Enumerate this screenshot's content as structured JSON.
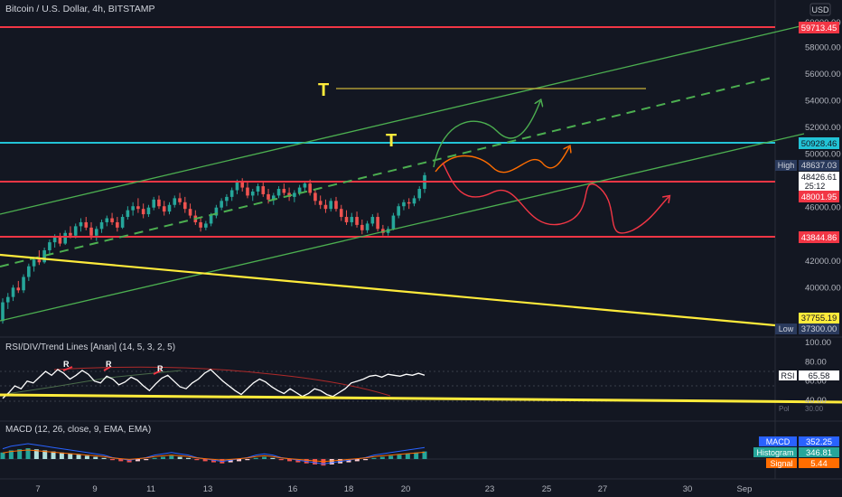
{
  "header": {
    "symbol_title": "Bitcoin / U.S. Dollar, 4h, BITSTAMP",
    "currency": "USD",
    "top_label": "60000.00"
  },
  "price_axis": {
    "ticks": [
      "58000.00",
      "56000.00",
      "54000.00",
      "52000.00",
      "50000.00",
      "46000.00",
      "42000.00",
      "40000.00"
    ],
    "tick_values": [
      58000,
      56000,
      54000,
      52000,
      50000,
      46000,
      42000,
      40000
    ],
    "ylim": [
      36500,
      60200
    ]
  },
  "price_labels": {
    "res_top": "59713.45",
    "cyan_level": "50928.46",
    "high_tag": "High",
    "high_value": "48637.03",
    "last_price": "48426.61",
    "countdown": "25:12",
    "level_48001": "48001.95",
    "level_43844": "43844.86",
    "support_37755": "37755.19",
    "low_tag": "Low",
    "low_value": "37300.00"
  },
  "levels": {
    "res_top": 59713.45,
    "cyan_level": 50928.46,
    "level_48001": 48001.95,
    "level_43844": 43844.86
  },
  "annotations": {
    "t1": "T",
    "t2": "T"
  },
  "rsi": {
    "title": "RSI/DIV/Trend Lines [Anan] (14, 5, 3, 2, 5)",
    "ticks": [
      "100.00",
      "80.00",
      "60.00",
      "40.00"
    ],
    "tick_values": [
      100,
      80,
      60,
      40
    ],
    "rsi_label": "RSI",
    "rsi_value": "65.58",
    "obscured_1": "Pol",
    "obscured_2": "30.00",
    "div_markers": [
      "R",
      "R",
      "R"
    ]
  },
  "macd": {
    "title": "MACD (12, 26, close, 9, EMA, EMA)",
    "macd_tag": "MACD",
    "macd_value": "352.25",
    "hist_tag": "Histogram",
    "hist_value": "346.81",
    "signal_tag": "Signal",
    "signal_value": "5.44"
  },
  "time_axis": {
    "labels": [
      "7",
      "9",
      "11",
      "13",
      "16",
      "18",
      "20",
      "23",
      "25",
      "27",
      "30",
      "Sep"
    ]
  },
  "colors": {
    "bg": "#131722",
    "up": "#26a69a",
    "down": "#ef5350",
    "red_line": "#f23645",
    "cyan_line": "#22c3d6",
    "green_line": "#4caf50",
    "yellow_line": "#ffeb3b",
    "orange_path": "#ff6d00",
    "text": "#b2b5be"
  },
  "chart_data": {
    "type": "candlestick",
    "title": "Bitcoin / U.S. Dollar, 4h, BITSTAMP",
    "ylim": [
      36500,
      60200
    ],
    "candles_ohlc": [
      [
        37500,
        39200,
        37300,
        38900
      ],
      [
        38900,
        39600,
        38400,
        39300
      ],
      [
        39300,
        40200,
        39000,
        40000
      ],
      [
        40000,
        40500,
        39600,
        39800
      ],
      [
        39800,
        41000,
        39600,
        40800
      ],
      [
        40800,
        41800,
        40500,
        41600
      ],
      [
        41600,
        42300,
        41200,
        42100
      ],
      [
        42100,
        42800,
        41700,
        41900
      ],
      [
        41900,
        43000,
        41800,
        42800
      ],
      [
        42800,
        43600,
        42500,
        43400
      ],
      [
        43400,
        44000,
        43000,
        43800
      ],
      [
        43800,
        44100,
        43100,
        43300
      ],
      [
        43300,
        44300,
        43200,
        44100
      ],
      [
        44100,
        44600,
        43700,
        43900
      ],
      [
        43900,
        44800,
        43700,
        44600
      ],
      [
        44600,
        45200,
        44200,
        44900
      ],
      [
        44900,
        45300,
        44300,
        44500
      ],
      [
        44500,
        44900,
        43600,
        43900
      ],
      [
        43900,
        44600,
        43500,
        44400
      ],
      [
        44400,
        45100,
        44100,
        44900
      ],
      [
        44900,
        45400,
        44600,
        45200
      ],
      [
        45200,
        45600,
        44700,
        44900
      ],
      [
        44900,
        45300,
        44200,
        44500
      ],
      [
        44500,
        45500,
        44400,
        45300
      ],
      [
        45300,
        46100,
        45100,
        45800
      ],
      [
        45800,
        46400,
        45400,
        46100
      ],
      [
        46100,
        46700,
        45600,
        45900
      ],
      [
        45900,
        46300,
        45200,
        45500
      ],
      [
        45500,
        46200,
        45300,
        46000
      ],
      [
        46000,
        46800,
        45800,
        46600
      ],
      [
        46600,
        46900,
        45900,
        46100
      ],
      [
        46100,
        46500,
        45400,
        45700
      ],
      [
        45700,
        46400,
        45500,
        46200
      ],
      [
        46200,
        46900,
        46000,
        46700
      ],
      [
        46700,
        47100,
        46200,
        46400
      ],
      [
        46400,
        46800,
        45600,
        45900
      ],
      [
        45900,
        46300,
        45200,
        45400
      ],
      [
        45400,
        45800,
        44700,
        44900
      ],
      [
        44900,
        45300,
        44200,
        44500
      ],
      [
        44500,
        45000,
        44300,
        44800
      ],
      [
        44800,
        45600,
        44600,
        45400
      ],
      [
        45400,
        46200,
        45200,
        46000
      ],
      [
        46000,
        46700,
        45800,
        46500
      ],
      [
        46500,
        47000,
        46100,
        46800
      ],
      [
        46800,
        47500,
        46500,
        47300
      ],
      [
        47300,
        48100,
        47000,
        47900
      ],
      [
        47900,
        48200,
        47200,
        47500
      ],
      [
        47500,
        47900,
        46700,
        46900
      ],
      [
        46900,
        47400,
        46500,
        47200
      ],
      [
        47200,
        47800,
        46900,
        47600
      ],
      [
        47600,
        47900,
        46800,
        47000
      ],
      [
        47000,
        47400,
        46300,
        46600
      ],
      [
        46600,
        47100,
        46200,
        46900
      ],
      [
        46900,
        47600,
        46700,
        47400
      ],
      [
        47400,
        47800,
        46900,
        47100
      ],
      [
        47100,
        47500,
        46500,
        46800
      ],
      [
        46800,
        47300,
        46400,
        47100
      ],
      [
        47100,
        47700,
        46900,
        47500
      ],
      [
        47500,
        48000,
        47200,
        47800
      ],
      [
        47800,
        48100,
        46900,
        47100
      ],
      [
        47100,
        47300,
        46200,
        46500
      ],
      [
        46500,
        46900,
        45900,
        46200
      ],
      [
        46200,
        46600,
        45600,
        45900
      ],
      [
        45900,
        46700,
        45700,
        46500
      ],
      [
        46500,
        46800,
        45700,
        45900
      ],
      [
        45900,
        46200,
        45000,
        45300
      ],
      [
        45300,
        45800,
        44700,
        44900
      ],
      [
        44900,
        45600,
        44600,
        45300
      ],
      [
        45300,
        45700,
        44500,
        44700
      ],
      [
        44700,
        45100,
        44000,
        44300
      ],
      [
        44300,
        45000,
        44100,
        44800
      ],
      [
        44800,
        45500,
        44600,
        45300
      ],
      [
        45300,
        45600,
        44200,
        44400
      ],
      [
        44400,
        44700,
        43900,
        44100
      ],
      [
        44100,
        44600,
        43900,
        44400
      ],
      [
        44400,
        45600,
        44300,
        45400
      ],
      [
        45400,
        46300,
        45200,
        46100
      ],
      [
        46100,
        46600,
        45800,
        46400
      ],
      [
        46400,
        46700,
        45900,
        46300
      ],
      [
        46300,
        46900,
        46100,
        46700
      ],
      [
        46700,
        47600,
        46500,
        47400
      ],
      [
        47400,
        48637,
        47100,
        48427
      ]
    ]
  }
}
